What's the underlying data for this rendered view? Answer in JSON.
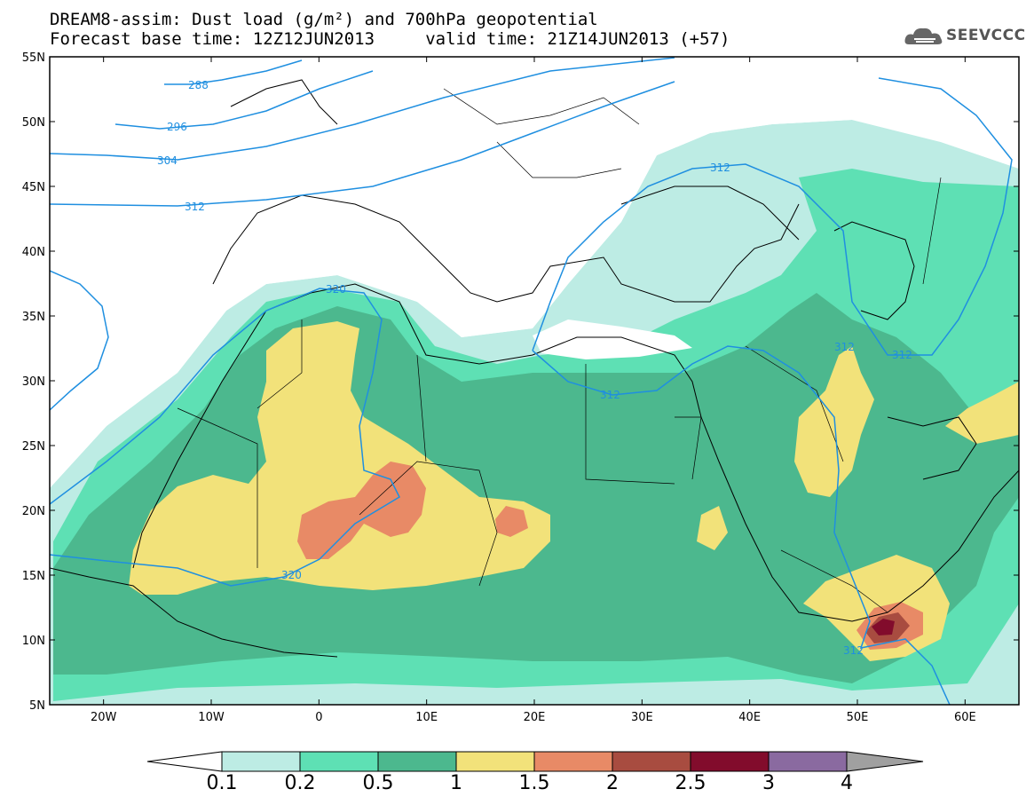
{
  "header": {
    "line1": "DREAM8-assim: Dust load (g/m²) and 700hPa geopotential",
    "line2": "Forecast base time: 12Z12JUN2013     valid time: 21Z14JUN2013 (+57)"
  },
  "logo": {
    "text": "SEEVCCC",
    "icon": "cloud-logo-icon"
  },
  "map": {
    "lat_labels": [
      "55N",
      "50N",
      "45N",
      "40N",
      "35N",
      "30N",
      "25N",
      "20N",
      "15N",
      "10N",
      "5N"
    ],
    "lon_labels": [
      "20W",
      "10W",
      "0",
      "10E",
      "20E",
      "30E",
      "40E",
      "50E",
      "60E"
    ],
    "lat_range": [
      5,
      55
    ],
    "lon_range": [
      -25,
      65
    ],
    "contour_labels": [
      "288",
      "296",
      "304",
      "312",
      "320",
      "312",
      "320",
      "312",
      "312",
      "312",
      "312"
    ]
  },
  "colorbar": {
    "labels": [
      "0.1",
      "0.2",
      "0.5",
      "1",
      "1.5",
      "2",
      "2.5",
      "3",
      "4"
    ],
    "colors": [
      "#ffffff",
      "#bdece4",
      "#5ee0b4",
      "#4cb88e",
      "#f2e27a",
      "#e88a66",
      "#a84c40",
      "#820c2c",
      "#8a6aa0",
      "#a0a0a0"
    ]
  },
  "colors": {
    "dust_01": "#bdece4",
    "dust_02": "#5ee0b4",
    "dust_05": "#4cb88e",
    "dust_1": "#f2e27a",
    "dust_15": "#e88a66",
    "dust_2": "#a84c40",
    "dust_25": "#820c2c",
    "contour": "#1f8fe0"
  }
}
